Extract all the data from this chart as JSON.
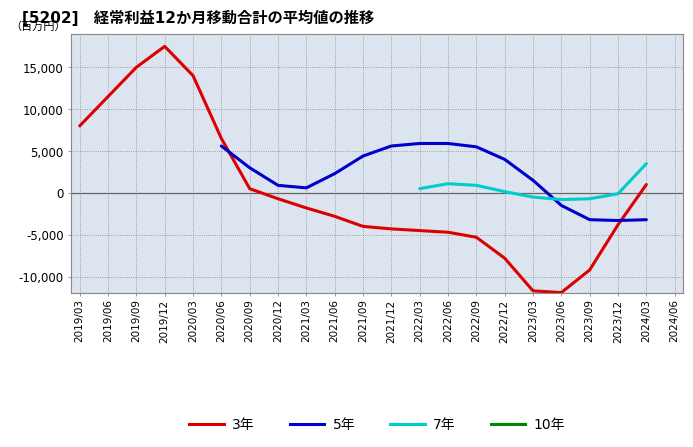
{
  "title": "[5202]　経常利益12か月移動合計の平均値の推移",
  "ylabel": "（百万円）",
  "ylim": [
    -12000,
    19000
  ],
  "yticks": [
    -10000,
    -5000,
    0,
    5000,
    10000,
    15000
  ],
  "background_color": "#ffffff",
  "plot_bg_color": "#dce4f0",
  "grid_color": "#aaaaaa",
  "series": {
    "3yr": {
      "label": "3年",
      "color": "#dd0000",
      "values": [
        8000,
        11500,
        15000,
        17500,
        14000,
        6500,
        500,
        -700,
        -1800,
        -2800,
        -4000,
        -4300,
        -4500,
        -4700,
        -5300,
        -7800,
        -11700,
        -11900,
        -9200,
        -3800,
        1000,
        null
      ]
    },
    "5yr": {
      "label": "5年",
      "color": "#0000cc",
      "values": [
        null,
        null,
        null,
        null,
        null,
        5600,
        3000,
        900,
        600,
        2300,
        4400,
        5600,
        5900,
        5900,
        5500,
        4000,
        1500,
        -1500,
        -3200,
        -3300,
        -3200,
        null
      ]
    },
    "7yr": {
      "label": "7年",
      "color": "#00cccc",
      "values": [
        null,
        null,
        null,
        null,
        null,
        null,
        null,
        null,
        null,
        null,
        null,
        null,
        500,
        1100,
        900,
        150,
        -500,
        -800,
        -700,
        -100,
        3500,
        null
      ]
    },
    "10yr": {
      "label": "10年",
      "color": "#008800",
      "values": [
        null,
        null,
        null,
        null,
        null,
        null,
        null,
        null,
        null,
        null,
        null,
        null,
        null,
        null,
        null,
        null,
        null,
        null,
        null,
        null,
        null,
        null
      ]
    }
  },
  "xtick_labels": [
    "2019/03",
    "2019/06",
    "2019/09",
    "2019/12",
    "2020/03",
    "2020/06",
    "2020/09",
    "2020/12",
    "2021/03",
    "2021/06",
    "2021/09",
    "2021/12",
    "2022/03",
    "2022/06",
    "2022/09",
    "2022/12",
    "2023/03",
    "2023/06",
    "2023/09",
    "2023/12",
    "2024/03",
    "2024/06"
  ],
  "legend_items": [
    {
      "label": "3年",
      "color": "#dd0000"
    },
    {
      "label": "5年",
      "color": "#0000cc"
    },
    {
      "label": "7年",
      "color": "#00cccc"
    },
    {
      "label": "10年",
      "color": "#008800"
    }
  ]
}
